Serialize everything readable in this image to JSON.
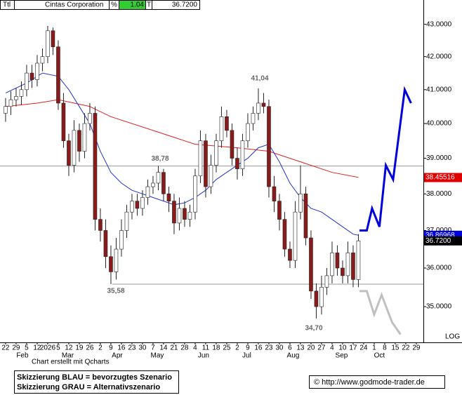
{
  "header": {
    "ticker": "Ttl",
    "name": "Cintas Corporation",
    "pct_sign": "%",
    "change": "1.04",
    "t": "T",
    "last": "36.7200"
  },
  "footer": {
    "credit": "Chart erstellt mit Qcharts",
    "legend_blue": "Skizzierung BLAU = bevorzugtes Szenario",
    "legend_gray": "Skizzierung GRAU = Alternativszenario",
    "site": "© http://www.godmode-trader.de"
  },
  "chart_data": {
    "type": "candlestick",
    "log": true,
    "log_label": "LOG",
    "ylim": [
      34.1,
      43.77
    ],
    "yticks": [
      {
        "value": 35,
        "label": "35.0000"
      },
      {
        "value": 36,
        "label": "36.0000"
      },
      {
        "value": 37,
        "label": "37.0000"
      },
      {
        "value": 38,
        "label": "38.0000"
      },
      {
        "value": 39,
        "label": "39.0000"
      },
      {
        "value": 40,
        "label": "40.0000"
      },
      {
        "value": 41,
        "label": "41.0000"
      },
      {
        "value": 42,
        "label": "42.0000"
      },
      {
        "value": 43,
        "label": "43.0000"
      }
    ],
    "xlim": [
      -0.53,
      39.67
    ],
    "xticks": [
      {
        "value": 0,
        "label": "22"
      },
      {
        "value": 1,
        "label": "29"
      },
      {
        "value": 2,
        "label": "5"
      },
      {
        "value": 3,
        "label": "12"
      },
      {
        "value": 4,
        "label": "2026"
      },
      {
        "value": 5,
        "label": "5"
      },
      {
        "value": 6,
        "label": "12"
      },
      {
        "value": 7,
        "label": "19"
      },
      {
        "value": 8,
        "label": "26"
      },
      {
        "value": 9,
        "label": "2"
      },
      {
        "value": 10,
        "label": "9"
      },
      {
        "value": 11,
        "label": "16"
      },
      {
        "value": 12,
        "label": "23"
      },
      {
        "value": 13,
        "label": "30"
      },
      {
        "value": 14,
        "label": "7"
      },
      {
        "value": 15,
        "label": "14"
      },
      {
        "value": 16,
        "label": "21"
      },
      {
        "value": 17,
        "label": "28"
      },
      {
        "value": 18,
        "label": "4"
      },
      {
        "value": 19,
        "label": "11"
      },
      {
        "value": 20,
        "label": "18"
      },
      {
        "value": 21,
        "label": "25"
      },
      {
        "value": 22,
        "label": "2"
      },
      {
        "value": 23,
        "label": "9"
      },
      {
        "value": 24,
        "label": "16"
      },
      {
        "value": 25,
        "label": "23"
      },
      {
        "value": 26,
        "label": "30"
      },
      {
        "value": 27,
        "label": "6"
      },
      {
        "value": 28,
        "label": "13"
      },
      {
        "value": 29,
        "label": "20"
      },
      {
        "value": 30,
        "label": "27"
      },
      {
        "value": 31,
        "label": "4"
      },
      {
        "value": 32,
        "label": "10"
      },
      {
        "value": 33,
        "label": "17"
      },
      {
        "value": 34,
        "label": "24"
      },
      {
        "value": 35,
        "label": "1"
      },
      {
        "value": 36,
        "label": "8"
      },
      {
        "value": 37,
        "label": "15"
      },
      {
        "value": 38,
        "label": "22"
      },
      {
        "value": 39,
        "label": "29"
      }
    ],
    "month_labels": [
      {
        "value": 1.6,
        "label": "Feb"
      },
      {
        "value": 5.9,
        "label": "Mar"
      },
      {
        "value": 10.6,
        "label": "Apr"
      },
      {
        "value": 14.4,
        "label": "May"
      },
      {
        "value": 18.8,
        "label": "Jun"
      },
      {
        "value": 22.9,
        "label": "Jul"
      },
      {
        "value": 27.3,
        "label": "Aug"
      },
      {
        "value": 31.9,
        "label": "Sep"
      },
      {
        "value": 35.5,
        "label": "Oct"
      }
    ],
    "up_color": "#ffffff",
    "down_color": "#8b1a1a",
    "candles": {
      "x": [
        0,
        0.5,
        1,
        1.5,
        2,
        2.5,
        3,
        3.5,
        4,
        4.5,
        5,
        5.5,
        6,
        6.5,
        7,
        7.5,
        8,
        8.5,
        9,
        9.5,
        10,
        10.5,
        11,
        11.5,
        12,
        12.5,
        13,
        13.5,
        14,
        14.5,
        15,
        15.5,
        16,
        16.5,
        17,
        17.5,
        18,
        18.5,
        19,
        19.5,
        20,
        20.5,
        21,
        21.5,
        22,
        22.5,
        23,
        23.5,
        24,
        24.5,
        25,
        25.5,
        26,
        26.5,
        27,
        27.5,
        28,
        28.5,
        29,
        29.5,
        30,
        30.5,
        31,
        31.5,
        32,
        32.5,
        33,
        33.5
      ],
      "open": [
        40.3,
        40.5,
        40.7,
        40.8,
        41.0,
        41.5,
        41.3,
        41.8,
        42.0,
        42.8,
        42.3,
        40.6,
        39.5,
        38.8,
        39.8,
        39.2,
        40.0,
        40.3,
        37.3,
        37.0,
        36.3,
        35.9,
        36.5,
        37.0,
        37.5,
        37.8,
        37.6,
        37.9,
        38.2,
        38.3,
        38.6,
        38.0,
        37.8,
        37.2,
        37.6,
        37.3,
        37.5,
        38.5,
        39.5,
        38.2,
        38.8,
        39.5,
        40.2,
        39.8,
        39.0,
        38.7,
        39.5,
        40.0,
        40.3,
        40.6,
        40.5,
        38.2,
        37.8,
        37.3,
        36.5,
        36.2,
        37.5,
        38.0,
        36.8,
        35.4,
        35.0,
        35.5,
        35.8,
        36.4,
        36.0,
        35.8,
        36.4,
        35.7
      ],
      "high": [
        40.75,
        40.95,
        41.05,
        41.25,
        41.75,
        41.75,
        42.05,
        42.25,
        42.95,
        42.9,
        42.5,
        40.9,
        39.7,
        40.1,
        40.0,
        40.3,
        40.6,
        40.5,
        37.6,
        37.3,
        36.6,
        36.8,
        37.3,
        37.7,
        38.0,
        38.0,
        38.1,
        38.4,
        38.5,
        38.78,
        38.7,
        38.2,
        38.0,
        37.9,
        37.8,
        37.7,
        38.7,
        39.8,
        39.7,
        39.1,
        39.7,
        40.5,
        40.4,
        40.0,
        39.3,
        39.7,
        40.3,
        40.5,
        41.04,
        40.9,
        40.7,
        38.5,
        38.0,
        37.5,
        36.7,
        37.8,
        38.8,
        38.2,
        37.0,
        35.6,
        35.8,
        36.0,
        36.7,
        36.6,
        36.2,
        36.7,
        36.6,
        36.9
      ],
      "low": [
        40.05,
        40.25,
        40.5,
        40.55,
        40.8,
        41.05,
        41.1,
        41.55,
        41.8,
        42.05,
        40.4,
        39.3,
        38.5,
        38.6,
        38.9,
        39.0,
        39.8,
        37.0,
        36.7,
        36.0,
        35.58,
        35.7,
        36.3,
        36.8,
        37.3,
        37.4,
        37.4,
        37.7,
        38.0,
        38.1,
        37.8,
        37.5,
        36.9,
        37.0,
        37.1,
        37.1,
        37.3,
        38.3,
        37.9,
        38.0,
        38.6,
        39.3,
        39.6,
        38.8,
        38.4,
        38.5,
        39.3,
        39.8,
        40.1,
        40.3,
        37.9,
        37.5,
        37.0,
        36.3,
        36.0,
        36.0,
        37.3,
        36.6,
        35.2,
        34.7,
        34.8,
        35.3,
        35.6,
        35.8,
        35.6,
        35.6,
        35.5,
        35.5
      ],
      "close": [
        40.5,
        40.7,
        40.8,
        41.0,
        41.5,
        41.3,
        41.8,
        42.0,
        42.8,
        42.3,
        40.6,
        39.5,
        38.8,
        39.8,
        39.2,
        40.0,
        40.3,
        37.3,
        37.0,
        36.3,
        35.9,
        36.5,
        37.0,
        37.5,
        37.8,
        37.6,
        37.9,
        38.2,
        38.3,
        38.6,
        38.0,
        37.8,
        37.2,
        37.6,
        37.3,
        37.5,
        38.5,
        39.5,
        38.2,
        38.8,
        39.5,
        40.2,
        39.8,
        39.0,
        38.7,
        39.5,
        40.0,
        40.3,
        40.6,
        40.5,
        38.2,
        37.8,
        37.3,
        36.5,
        36.2,
        37.5,
        38.0,
        36.8,
        35.4,
        35.0,
        35.5,
        35.8,
        36.4,
        36.0,
        35.8,
        36.4,
        35.7,
        36.72
      ]
    },
    "lines": [
      {
        "color": "#dd2222",
        "width": 1,
        "x": [
          0,
          3,
          5,
          8,
          10,
          14,
          18,
          22,
          25,
          28,
          31,
          33.5
        ],
        "values": [
          40.5,
          40.6,
          40.7,
          40.5,
          40.2,
          39.8,
          39.4,
          39.3,
          39.2,
          38.9,
          38.6,
          38.46
        ]
      },
      {
        "color": "#2233cc",
        "width": 1,
        "x": [
          0,
          2,
          3.5,
          5,
          6,
          7,
          8,
          9,
          10,
          11,
          12,
          13,
          14,
          15,
          16,
          17,
          18,
          19,
          20,
          21,
          22,
          23,
          24,
          25,
          26,
          27,
          28,
          29,
          30,
          31,
          32,
          33,
          33.5
        ],
        "values": [
          40.9,
          41.2,
          41.5,
          41.4,
          41.0,
          40.5,
          40.0,
          39.2,
          38.6,
          38.3,
          38.1,
          38.0,
          37.9,
          37.8,
          37.7,
          37.75,
          37.9,
          38.1,
          38.4,
          38.6,
          38.8,
          39.0,
          39.3,
          39.4,
          38.9,
          38.3,
          37.9,
          37.6,
          37.5,
          37.3,
          37.1,
          36.9,
          36.87
        ]
      },
      {
        "color": "#0000dd",
        "width": 3,
        "x": [
          33.6,
          34.3,
          34.8,
          35.5,
          36.1,
          36.8,
          37.9,
          38.5
        ],
        "values": [
          37.0,
          37.0,
          37.6,
          37.1,
          38.8,
          38.4,
          41.0,
          40.6
        ]
      },
      {
        "color": "#c0c0c0",
        "width": 3,
        "x": [
          33.6,
          34.3,
          35.0,
          35.7,
          36.7,
          37.5
        ],
        "values": [
          35.4,
          35.4,
          34.8,
          35.3,
          34.6,
          34.3
        ]
      }
    ],
    "levels": [
      {
        "value": 38.78,
        "label": "38,78"
      },
      {
        "value": 35.58,
        "label": "35,58"
      }
    ],
    "annotations": [
      {
        "value": 41.04,
        "label": "41,04"
      },
      {
        "value": 34.7,
        "label": "34,70"
      }
    ],
    "price_tags": [
      {
        "value": 38.45516,
        "label": "38.45516",
        "color": "#e00000"
      },
      {
        "value": 36.86968,
        "label": "36.86968",
        "color": "#0000e0"
      },
      {
        "value": 36.72,
        "label": "36.7200",
        "color": "#000000"
      }
    ]
  }
}
